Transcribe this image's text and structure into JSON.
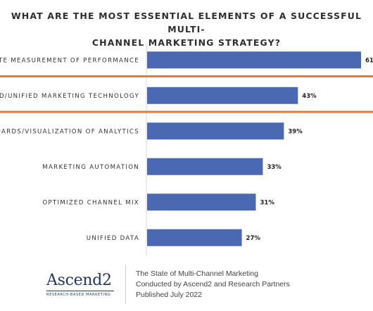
{
  "chart_data": {
    "type": "bar",
    "orientation": "horizontal",
    "title_lines": [
      "WHAT ARE THE MOST ESSENTIAL ELEMENTS OF A SUCCESSFUL MULTI-",
      "CHANNEL MARKETING STRATEGY?"
    ],
    "categories": [
      "ATE MEASUREMENT OF PERFORMANCE",
      "ED/UNIFIED MARKETING TECHNOLOGY",
      "OARDS/VISUALIZATION OF ANALYTICS",
      "MARKETING AUTOMATION",
      "OPTIMIZED CHANNEL MIX",
      "UNIFIED DATA"
    ],
    "values": [
      61,
      43,
      39,
      33,
      31,
      27
    ],
    "value_labels": [
      "61",
      "43%",
      "39%",
      "33%",
      "31%",
      "27%"
    ],
    "unit": "%",
    "highlighted_category": "ED/UNIFIED MARKETING TECHNOLOGY",
    "bar_color": "#4a69b2",
    "highlight_color": "#e07b39",
    "grid": false,
    "legend": "none"
  },
  "footer": {
    "logo_word": "Ascend2",
    "logo_tagline": "RESEARCH-BASED MARKETING",
    "source_lines": [
      "The State of Multi-Channel Marketing",
      "Conducted by Ascend2 and Research Partners",
      "Published July 2022"
    ]
  }
}
